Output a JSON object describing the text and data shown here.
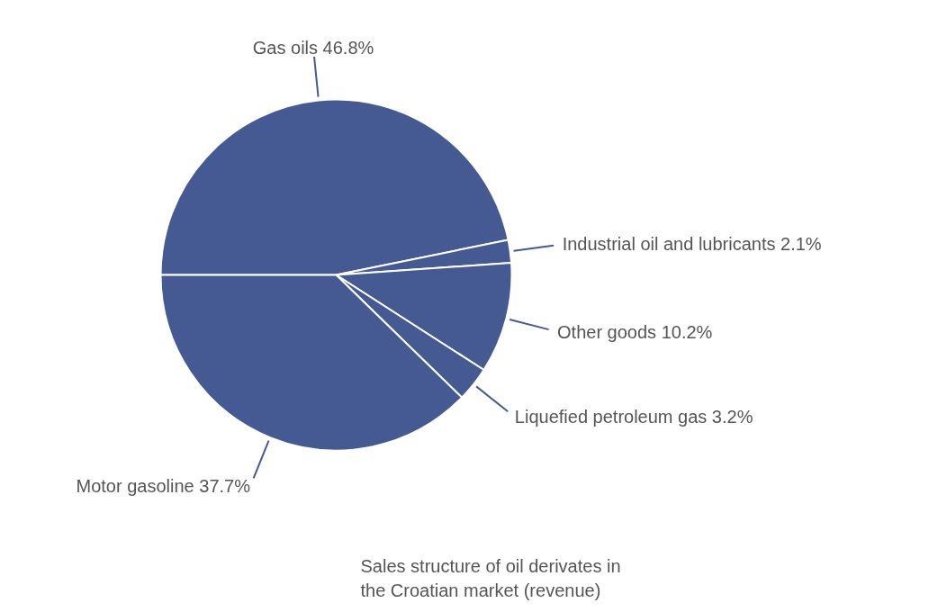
{
  "chart_data": {
    "type": "pie",
    "title": "Sales structure of oil derivates in the Croatian market (revenue)",
    "categories": [
      "Gas oils 46.8%",
      "Industrial oil and lubricants 2.1%",
      "Other goods 10.2%",
      "Liquefied petroleum gas 3.2%",
      "Motor gasoline 37.7%"
    ],
    "values": [
      46.8,
      2.1,
      10.2,
      3.2,
      37.7
    ],
    "colors": [
      "#455a92",
      "#455a92",
      "#455a92",
      "#455a92",
      "#455a92"
    ]
  }
}
